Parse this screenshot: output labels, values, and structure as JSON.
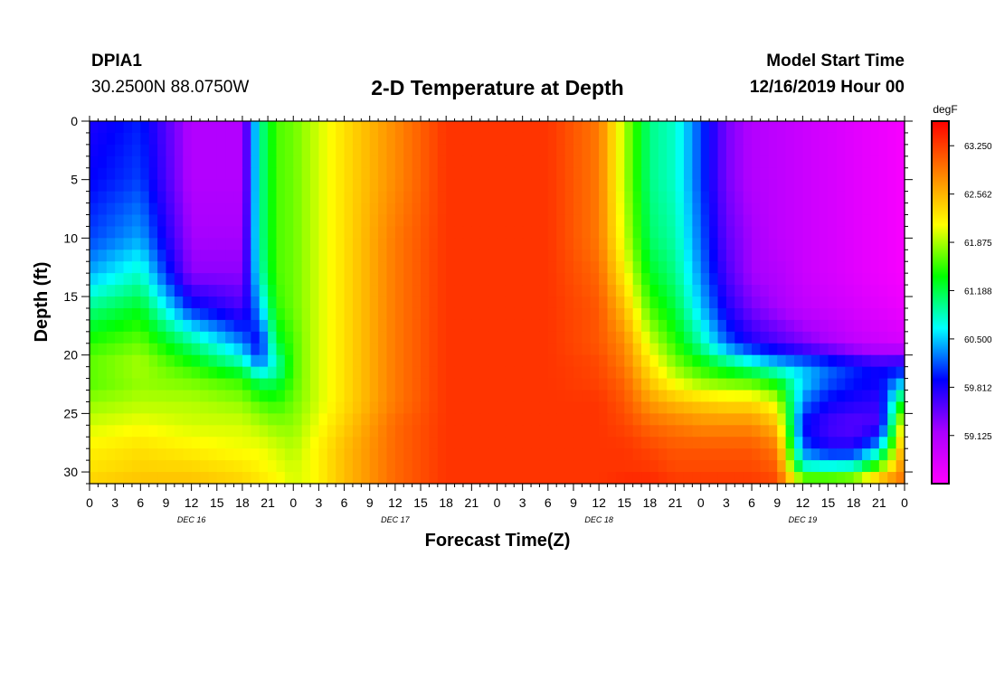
{
  "header": {
    "station_id": "DPIA1",
    "coordinates": "30.2500N 88.0750W",
    "model_start_label": "Model Start Time",
    "model_start_value": "12/16/2019 Hour 00"
  },
  "chart_data": {
    "type": "heatmap",
    "title": "2-D Temperature at Depth",
    "xlabel": "Forecast Time(Z)",
    "ylabel": "Depth (ft)",
    "x_unit": "hours since 12/16/2019 00Z",
    "xlim": [
      0,
      96
    ],
    "ylim": [
      0,
      31
    ],
    "y_inverted": true,
    "x_tick_labels": [
      "0",
      "3",
      "6",
      "9",
      "12",
      "15",
      "18",
      "21",
      "0",
      "3",
      "6",
      "9",
      "12",
      "15",
      "18",
      "21",
      "0",
      "3",
      "6",
      "9",
      "12",
      "15",
      "18",
      "21",
      "0",
      "3",
      "6",
      "9",
      "12",
      "15",
      "18",
      "21",
      "0"
    ],
    "date_labels": [
      {
        "label": "DEC 16",
        "hour": 12
      },
      {
        "label": "DEC 17",
        "hour": 36
      },
      {
        "label": "DEC 18",
        "hour": 60
      },
      {
        "label": "DEC 19",
        "hour": 84
      }
    ],
    "y_ticks": [
      0,
      5,
      10,
      15,
      20,
      25,
      30
    ],
    "colorbar": {
      "unit": "degF",
      "min": 58.44,
      "max": 63.6,
      "labels": [
        "63.250",
        "62.562",
        "61.875",
        "61.188",
        "60.500",
        "59.812",
        "59.125"
      ],
      "colors": [
        "#ff00ff",
        "#aa00ff",
        "#0000ff",
        "#00ffff",
        "#00ff00",
        "#ffff00",
        "#ff8000",
        "#ff0000"
      ]
    },
    "grid_hours": [
      0,
      6,
      12,
      18,
      20,
      22,
      24,
      26,
      30,
      36,
      42,
      48,
      54,
      60,
      63,
      66,
      69,
      72,
      75,
      78,
      81,
      84,
      87,
      90,
      93,
      96
    ],
    "grid_depths": [
      0,
      5,
      10,
      13,
      16,
      19,
      21,
      22,
      24,
      26,
      28,
      30,
      31
    ],
    "values_degF": [
      [
        59.8,
        60.0,
        59.1,
        59.1,
        60.9,
        61.6,
        61.7,
        61.9,
        62.3,
        62.8,
        63.3,
        63.3,
        63.3,
        62.9,
        61.9,
        61.0,
        60.8,
        60.1,
        59.4,
        59.1,
        59.0,
        58.9,
        58.8,
        58.7,
        58.6,
        58.5
      ],
      [
        59.9,
        60.1,
        59.1,
        59.1,
        60.9,
        61.6,
        61.7,
        61.9,
        62.3,
        62.8,
        63.3,
        63.3,
        63.3,
        62.9,
        61.9,
        61.0,
        60.8,
        60.1,
        59.4,
        59.1,
        59.0,
        58.9,
        58.8,
        58.7,
        58.6,
        58.5
      ],
      [
        60.1,
        60.4,
        59.2,
        59.2,
        60.9,
        61.6,
        61.7,
        61.9,
        62.3,
        62.9,
        63.3,
        63.3,
        63.3,
        62.9,
        62.0,
        61.1,
        60.9,
        60.2,
        59.5,
        59.2,
        59.0,
        58.9,
        58.8,
        58.7,
        58.6,
        58.5
      ],
      [
        60.4,
        60.8,
        59.3,
        59.3,
        60.8,
        61.6,
        61.7,
        61.9,
        62.3,
        62.9,
        63.3,
        63.3,
        63.3,
        63.0,
        62.2,
        61.3,
        61.0,
        60.3,
        59.6,
        59.2,
        59.1,
        58.9,
        58.8,
        58.7,
        58.6,
        58.5
      ],
      [
        61.0,
        61.3,
        60.0,
        59.6,
        60.4,
        61.5,
        61.7,
        61.9,
        62.3,
        62.9,
        63.3,
        63.3,
        63.3,
        63.1,
        62.5,
        61.6,
        61.2,
        60.5,
        59.8,
        59.4,
        59.2,
        59.0,
        58.9,
        58.8,
        58.7,
        58.6
      ],
      [
        61.5,
        61.7,
        61.0,
        60.3,
        59.8,
        61.2,
        61.6,
        61.9,
        62.3,
        62.9,
        63.3,
        63.3,
        63.3,
        63.1,
        62.8,
        62.0,
        61.5,
        60.9,
        60.2,
        59.8,
        59.6,
        59.4,
        59.2,
        59.0,
        58.9,
        58.8
      ],
      [
        61.7,
        61.9,
        61.5,
        61.0,
        60.3,
        60.8,
        61.6,
        61.9,
        62.3,
        62.9,
        63.3,
        63.3,
        63.3,
        63.2,
        62.9,
        62.3,
        61.8,
        61.5,
        61.2,
        60.9,
        60.6,
        60.4,
        60.2,
        60.0,
        59.8,
        59.9
      ],
      [
        61.6,
        61.8,
        61.7,
        61.5,
        61.0,
        61.1,
        61.6,
        61.9,
        62.3,
        62.9,
        63.3,
        63.3,
        63.3,
        63.2,
        63.0,
        62.4,
        62.0,
        61.7,
        61.6,
        61.5,
        61.2,
        60.6,
        60.2,
        60.0,
        59.9,
        60.3
      ],
      [
        61.8,
        61.9,
        61.9,
        61.8,
        61.6,
        61.5,
        61.7,
        61.9,
        62.3,
        62.9,
        63.3,
        63.3,
        63.3,
        63.3,
        63.1,
        62.7,
        62.5,
        62.4,
        62.3,
        62.3,
        62.0,
        60.3,
        59.9,
        59.8,
        59.7,
        61.5
      ],
      [
        62.0,
        62.1,
        62.0,
        62.0,
        61.9,
        61.8,
        61.8,
        62.0,
        62.4,
        63.0,
        63.3,
        63.3,
        63.3,
        63.3,
        63.2,
        63.0,
        62.9,
        62.8,
        62.8,
        62.8,
        62.5,
        59.9,
        59.6,
        59.5,
        59.6,
        62.4
      ],
      [
        62.2,
        62.3,
        62.2,
        62.1,
        62.1,
        62.0,
        61.9,
        62.1,
        62.5,
        63.0,
        63.3,
        63.3,
        63.3,
        63.3,
        63.3,
        63.2,
        63.1,
        63.1,
        63.1,
        63.1,
        62.9,
        60.2,
        59.8,
        59.8,
        60.5,
        62.8
      ],
      [
        62.3,
        62.4,
        62.4,
        62.3,
        62.2,
        62.1,
        62.0,
        62.1,
        62.5,
        63.0,
        63.3,
        63.3,
        63.3,
        63.3,
        63.3,
        63.3,
        63.2,
        63.2,
        63.2,
        63.2,
        63.1,
        61.0,
        61.0,
        61.1,
        62.0,
        62.9
      ],
      [
        62.4,
        62.5,
        62.5,
        62.4,
        62.3,
        62.2,
        62.0,
        62.1,
        62.5,
        63.0,
        63.3,
        63.3,
        63.3,
        63.3,
        63.4,
        63.4,
        63.3,
        63.3,
        63.3,
        63.3,
        63.2,
        62.2,
        62.2,
        62.3,
        62.8,
        63.0
      ]
    ]
  }
}
